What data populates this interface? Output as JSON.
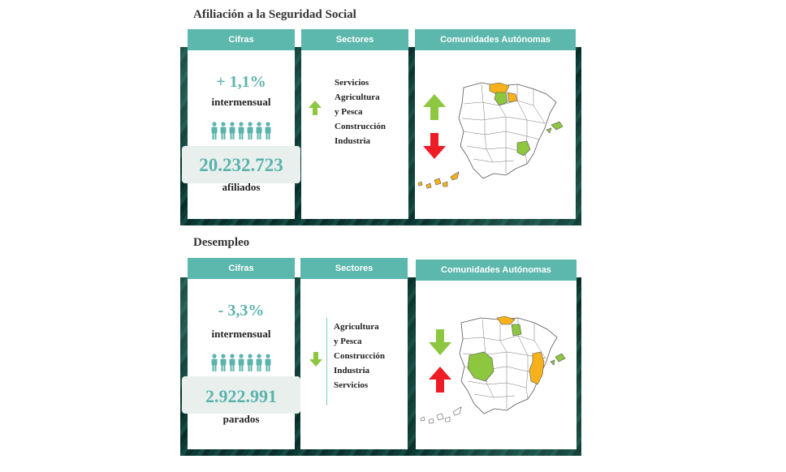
{
  "affiliation": {
    "title": "Afiliación a la Seguridad Social",
    "cifras_header": "Cifras",
    "sectores_header": "Sectores",
    "ccaa_header": "Comunidades Autónomas",
    "change": "+ 1,1%",
    "change_label": "intermensual",
    "total": "20.232.723",
    "total_label": "afiliados",
    "sectors": [
      "Servicios",
      "Agricultura",
      "y Pesca",
      "Construcción",
      "Industria"
    ],
    "sectors_trend": "up",
    "colors": {
      "up": "#8dc63f",
      "down": "#ee1c25",
      "orange": "#f7b21b",
      "green": "#8dc63f"
    }
  },
  "unemployment": {
    "title": "Desempleo",
    "cifras_header": "Cifras",
    "sectores_header": "Sectores",
    "ccaa_header": "Comunidades Autónomas",
    "change": "- 3,3%",
    "change_label": "intermensual",
    "total": "2.922.991",
    "total_label": "parados",
    "sectors": [
      "Agricultura",
      "y Pesca",
      "Construcción",
      "Industria",
      "Servicios"
    ],
    "sectors_trend": "down"
  }
}
